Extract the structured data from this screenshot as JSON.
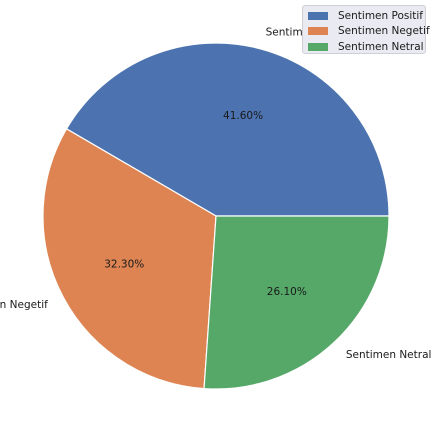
{
  "chart_data": {
    "type": "pie",
    "categories": [
      "Sentimen Positif",
      "Sentimen Negetif",
      "Sentimen Netral"
    ],
    "values": [
      41.6,
      32.3,
      26.1
    ],
    "percent_labels": [
      "41.60%",
      "32.30%",
      "26.10%"
    ],
    "colors": [
      "#4c72b0",
      "#dd8452",
      "#55a868"
    ],
    "start_angle_deg": 0,
    "direction": "counterclockwise",
    "legend": {
      "position": "top-right",
      "entries": [
        "Sentimen Positif",
        "Sentimen Negetif",
        "Sentimen Netral"
      ]
    },
    "title": ""
  }
}
